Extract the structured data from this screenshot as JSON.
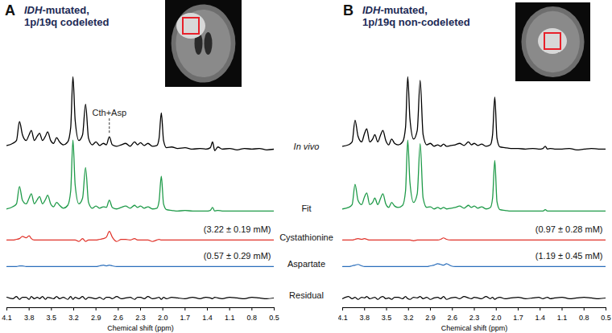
{
  "chart_data": [
    {
      "type": "line",
      "panel": "A",
      "title": [
        "IDH-mutated,",
        "1p/19q codeleted"
      ],
      "xlabel": "Chemical shift (ppm)",
      "xlim": [
        4.1,
        0.5
      ],
      "xticks": [
        4.1,
        3.8,
        3.5,
        3.2,
        2.9,
        2.6,
        2.3,
        {
          "value": 2,
          "label": "2.0"
        },
        1.7,
        1.4,
        1.1,
        0.8,
        0.5
      ],
      "x": [
        4.1,
        4.02,
        3.97,
        3.93,
        3.89,
        3.84,
        3.8,
        3.77,
        3.73,
        3.69,
        3.66,
        3.62,
        3.58,
        3.55,
        3.51,
        3.47,
        3.43,
        3.39,
        3.34,
        3.28,
        3.24,
        3.21,
        3.18,
        3.13,
        3.08,
        3.04,
        3.0,
        2.95,
        2.9,
        2.85,
        2.8,
        2.76,
        2.72,
        2.68,
        2.62,
        2.56,
        2.5,
        2.44,
        2.38,
        2.34,
        2.3,
        2.25,
        2.2,
        2.14,
        2.08,
        2.05,
        2.02,
        1.99,
        1.95,
        1.88,
        1.8,
        1.7,
        1.6,
        1.5,
        1.42,
        1.36,
        1.33,
        1.3,
        1.26,
        1.2,
        1.1,
        1.0,
        0.9,
        0.8,
        0.7,
        0.6,
        0.5
      ],
      "series": [
        {
          "name": "In vivo",
          "color": "#000000",
          "values": [
            0.05,
            0.08,
            0.12,
            0.38,
            0.2,
            0.12,
            0.2,
            0.26,
            0.12,
            0.18,
            0.22,
            0.12,
            0.18,
            0.24,
            0.12,
            0.08,
            0.16,
            0.1,
            0.06,
            0.1,
            0.3,
            1.0,
            0.4,
            0.12,
            0.2,
            0.62,
            0.15,
            0.06,
            0.1,
            0.05,
            0.08,
            0.06,
            0.17,
            0.06,
            0.04,
            0.06,
            0.08,
            0.04,
            0.1,
            0.06,
            0.09,
            0.05,
            0.08,
            0.04,
            0.05,
            0.15,
            0.5,
            0.12,
            0.02,
            0.03,
            0.01,
            0.02,
            0,
            0.01,
            0,
            0.02,
            0.1,
            -0.02,
            0.03,
            0,
            0.01,
            -0.01,
            0.01,
            0,
            0.01,
            -0.01,
            0
          ]
        },
        {
          "name": "Fit",
          "color": "#1e9a48",
          "values": [
            0.03,
            0.06,
            0.1,
            0.34,
            0.15,
            0.1,
            0.18,
            0.24,
            0.1,
            0.16,
            0.2,
            0.1,
            0.16,
            0.22,
            0.1,
            0.06,
            0.12,
            0.08,
            0.04,
            0.08,
            0.28,
            0.98,
            0.36,
            0.1,
            0.18,
            0.6,
            0.12,
            0.04,
            0.07,
            0.04,
            0.06,
            0.05,
            0.15,
            0.05,
            0.03,
            0.05,
            0.07,
            0.04,
            0.08,
            0.05,
            0.07,
            0.04,
            0.06,
            0.03,
            0.04,
            0.14,
            0.48,
            0.1,
            0.02,
            0.01,
            0,
            0.01,
            0,
            0,
            0,
            0.01,
            0.05,
            0,
            0.01,
            0,
            0,
            0,
            0,
            0,
            0,
            0,
            0
          ]
        },
        {
          "name": "Cystathionine",
          "color": "#e03128",
          "annotation": "(3.22 ± 0.19 mM)",
          "values": [
            0,
            0,
            0.01,
            0.02,
            0.05,
            0.03,
            0.06,
            0.02,
            0,
            0,
            0,
            0,
            0,
            0,
            0,
            0,
            0,
            0,
            0,
            0,
            0,
            0,
            0,
            -0.02,
            0.02,
            -0.02,
            0,
            0,
            0,
            0.01,
            0.02,
            0.04,
            0.12,
            0.04,
            -0.02,
            0.01,
            0.01,
            0,
            0.02,
            0,
            0,
            0,
            0,
            -0.02,
            0,
            0.01,
            0,
            0,
            0,
            0,
            0,
            0,
            0,
            0,
            0,
            0,
            0,
            0,
            0,
            0,
            0,
            0,
            0,
            0,
            0,
            0,
            0
          ]
        },
        {
          "name": "Aspartate",
          "color": "#2a6ebb",
          "annotation": "(0.57 ± 0.29 mM)",
          "values": [
            0,
            0,
            0,
            0.01,
            0.01,
            0,
            0,
            0,
            0,
            0,
            0,
            0,
            0,
            0,
            0,
            0,
            0,
            0,
            0,
            0,
            0,
            0,
            0,
            0,
            0,
            0,
            0,
            0,
            0,
            0.01,
            0.02,
            0.01,
            0.02,
            0.01,
            0,
            0,
            0,
            0,
            0,
            0,
            0,
            0,
            0,
            0,
            0,
            0,
            0,
            0,
            0,
            0,
            0,
            0,
            0,
            0,
            0,
            0,
            0,
            0,
            0,
            0,
            0,
            0,
            0,
            0,
            0,
            0,
            0
          ]
        },
        {
          "name": "Residual",
          "color": "#000000",
          "values": [
            0.01,
            -0.01,
            0.02,
            -0.02,
            0.01,
            0.01,
            -0.02,
            0.02,
            -0.01,
            0.01,
            -0.01,
            0.02,
            -0.02,
            0.01,
            0,
            -0.01,
            0.02,
            -0.01,
            0.01,
            -0.02,
            0.02,
            -0.02,
            0.01,
            -0.01,
            0.02,
            -0.02,
            0.01,
            0,
            -0.01,
            0.01,
            -0.02,
            0.01,
            0.01,
            -0.01,
            0.02,
            -0.01,
            0,
            0.01,
            -0.02,
            0.01,
            0.01,
            -0.01,
            0.02,
            -0.01,
            0,
            0.01,
            -0.02,
            0.01,
            -0.01,
            0.01,
            0,
            -0.01,
            0.01,
            -0.01,
            0.01,
            0,
            -0.01,
            0.01,
            0,
            -0.01,
            0.01,
            0,
            -0.01,
            0.01,
            0,
            -0.01,
            0
          ]
        }
      ],
      "annotations": [
        {
          "text": "Cth+Asp",
          "x": 2.72
        }
      ]
    },
    {
      "type": "line",
      "panel": "B",
      "title": [
        "IDH-mutated,",
        "1p/19q non-codeleted"
      ],
      "xlabel": "Chemical shift (ppm)",
      "xlim": [
        4.1,
        0.5
      ],
      "xticks": [
        4.1,
        3.8,
        3.5,
        3.2,
        2.9,
        2.6,
        2.3,
        {
          "value": 2,
          "label": "2.0"
        },
        1.7,
        1.4,
        1.1,
        0.8,
        0.5
      ],
      "x": [
        4.1,
        4.02,
        3.97,
        3.93,
        3.89,
        3.84,
        3.8,
        3.77,
        3.73,
        3.69,
        3.66,
        3.62,
        3.58,
        3.55,
        3.51,
        3.47,
        3.43,
        3.39,
        3.34,
        3.28,
        3.24,
        3.21,
        3.18,
        3.13,
        3.08,
        3.04,
        3.0,
        2.95,
        2.9,
        2.85,
        2.8,
        2.76,
        2.72,
        2.68,
        2.62,
        2.56,
        2.5,
        2.44,
        2.38,
        2.34,
        2.3,
        2.25,
        2.2,
        2.14,
        2.08,
        2.05,
        2.02,
        1.99,
        1.95,
        1.88,
        1.8,
        1.7,
        1.6,
        1.5,
        1.42,
        1.36,
        1.33,
        1.3,
        1.26,
        1.2,
        1.1,
        1.0,
        0.9,
        0.8,
        0.7,
        0.6,
        0.5
      ],
      "series": [
        {
          "color": "#000000",
          "values": [
            0.04,
            0.06,
            0.1,
            0.4,
            0.18,
            0.1,
            0.22,
            0.28,
            0.1,
            0.14,
            0.2,
            0.1,
            0.2,
            0.26,
            0.12,
            0.06,
            0.14,
            0.08,
            0.06,
            0.1,
            0.3,
            1.0,
            0.42,
            0.14,
            0.26,
            0.95,
            0.2,
            0.06,
            0.08,
            0.04,
            0.06,
            0.04,
            0.07,
            0.04,
            0.05,
            0.06,
            0.08,
            0.05,
            0.1,
            0.06,
            0.08,
            0.05,
            0.07,
            0.04,
            0.06,
            0.2,
            0.72,
            0.15,
            0.03,
            0.02,
            0.01,
            0.01,
            0,
            0.01,
            0,
            0.01,
            0.04,
            0,
            0.01,
            0,
            0,
            0.01,
            -0.01,
            0,
            0.01,
            0,
            0
          ]
        },
        {
          "color": "#1e9a48",
          "values": [
            0.03,
            0.05,
            0.09,
            0.37,
            0.15,
            0.09,
            0.2,
            0.25,
            0.09,
            0.12,
            0.18,
            0.09,
            0.18,
            0.24,
            0.1,
            0.05,
            0.12,
            0.07,
            0.05,
            0.08,
            0.28,
            0.98,
            0.4,
            0.12,
            0.24,
            0.93,
            0.18,
            0.05,
            0.06,
            0.03,
            0.05,
            0.03,
            0.05,
            0.03,
            0.04,
            0.05,
            0.07,
            0.04,
            0.08,
            0.05,
            0.07,
            0.04,
            0.06,
            0.03,
            0.05,
            0.18,
            0.7,
            0.13,
            0.02,
            0.01,
            0,
            0,
            0,
            0,
            0,
            0,
            0.02,
            0,
            0,
            0,
            0,
            0,
            0,
            0,
            0,
            0,
            0
          ]
        },
        {
          "color": "#e03128",
          "annotation": "(0.97 ± 0.28 mM)",
          "values": [
            0,
            0,
            0,
            0.01,
            0.02,
            0.01,
            0.02,
            0.01,
            0,
            0,
            0,
            0,
            0,
            0,
            0,
            0,
            0,
            0,
            0,
            0,
            0,
            0,
            0,
            -0.01,
            0,
            0,
            0,
            0,
            0,
            0,
            0,
            0.01,
            0.03,
            0.01,
            0,
            0,
            0,
            0,
            0,
            0,
            0,
            0,
            0,
            0,
            0,
            0,
            0,
            0,
            0,
            0,
            0,
            0,
            0,
            0,
            0,
            0,
            0,
            0,
            0,
            0,
            0,
            0,
            0,
            0,
            0,
            0,
            0
          ]
        },
        {
          "color": "#2a6ebb",
          "annotation": "(1.19 ± 0.45 mM)",
          "values": [
            0,
            0,
            0.01,
            0.02,
            0.03,
            0.01,
            0,
            0,
            0,
            0,
            0,
            0,
            0,
            0,
            0,
            0,
            0,
            0,
            0,
            0,
            0,
            0,
            0,
            0,
            0,
            0,
            0,
            0,
            0.01,
            0.02,
            0.04,
            0.03,
            0.02,
            0.04,
            0.01,
            0,
            0,
            0,
            0,
            0,
            0,
            0,
            0,
            0,
            0,
            0,
            0,
            0,
            0,
            0,
            0,
            0,
            0,
            0,
            0,
            0,
            0,
            0,
            0,
            0,
            0,
            0,
            0,
            0,
            0,
            0,
            0
          ]
        },
        {
          "color": "#000000",
          "values": [
            -0.01,
            0.02,
            -0.01,
            0.01,
            -0.02,
            0.01,
            0,
            0.02,
            -0.01,
            0,
            0.01,
            -0.02,
            0.01,
            0.02,
            -0.01,
            0,
            -0.02,
            0.01,
            0.01,
            -0.01,
            0.02,
            -0.01,
            -0.02,
            0.01,
            0,
            0.02,
            -0.01,
            0.01,
            -0.02,
            0,
            0.01,
            -0.01,
            0.02,
            -0.02,
            0,
            0.01,
            -0.01,
            0.02,
            0,
            -0.01,
            0.01,
            0,
            -0.01,
            0.02,
            -0.01,
            0.01,
            -0.02,
            0,
            0.01,
            -0.01,
            0,
            0.01,
            -0.01,
            0,
            0.01,
            -0.01,
            0,
            0.01,
            -0.01,
            0,
            0.01,
            -0.01,
            0,
            0.01,
            0,
            -0.01,
            0
          ]
        }
      ]
    }
  ]
}
